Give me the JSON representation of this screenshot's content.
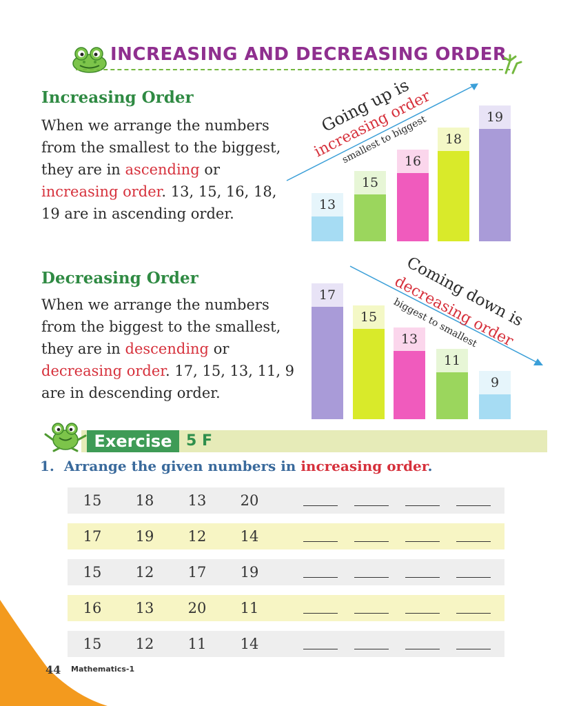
{
  "title": "INCREASING AND DECREASING ORDER",
  "increasing": {
    "heading": "Increasing Order",
    "lines": [
      {
        "t": "When we arrange the numbers"
      },
      {
        "t": "from the smallest to the biggest,"
      },
      {
        "pre": "they are in ",
        "red": "ascending",
        "post": " or"
      },
      {
        "pre": "",
        "red": "increasing order",
        "post": ". 13, 15, 16, 18,"
      },
      {
        "t": "19 are in ascending order."
      }
    ],
    "diagram": {
      "caption_line1": "Going up is",
      "caption_line2": "increasing order",
      "caption_line3": "smallest to biggest",
      "values": [
        "13",
        "15",
        "16",
        "18",
        "19"
      ]
    }
  },
  "decreasing": {
    "heading": "Decreasing Order",
    "lines": [
      {
        "t": "When we arrange the numbers"
      },
      {
        "t": "from the biggest to the smallest,"
      },
      {
        "pre": "they are in ",
        "red": "descending",
        "post": " or"
      },
      {
        "pre": "",
        "red": "decreasing order",
        "post": ". 17, 15, 13, 11, 9"
      },
      {
        "t": "are in descending order."
      }
    ],
    "diagram": {
      "caption_line1": "Coming down is",
      "caption_line2": "decreasing order",
      "caption_line3": "biggest to smallest",
      "values": [
        "17",
        "15",
        "13",
        "11",
        "9"
      ]
    }
  },
  "exercise": {
    "word": "Exercise",
    "number": "5 F",
    "question": {
      "num": "1.",
      "pre": "Arrange the given numbers in ",
      "red": "increasing order",
      "post": "."
    },
    "rows": [
      [
        "15",
        "18",
        "13",
        "20"
      ],
      [
        "17",
        "19",
        "12",
        "14"
      ],
      [
        "15",
        "12",
        "17",
        "19"
      ],
      [
        "16",
        "13",
        "20",
        "11"
      ],
      [
        "15",
        "12",
        "11",
        "14"
      ]
    ]
  },
  "footer": {
    "page": "44",
    "book": "Mathematics-1"
  },
  "colors": {
    "heading_green": "#2f8a43",
    "emphasis_red": "#d6313c",
    "title_purple": "#8f2f8f",
    "bar_blue": "#a6dcf3",
    "bar_green": "#9bd65d",
    "bar_pink": "#f05bbd",
    "bar_lime": "#d9ea2a",
    "bar_purple": "#a99bd8"
  }
}
